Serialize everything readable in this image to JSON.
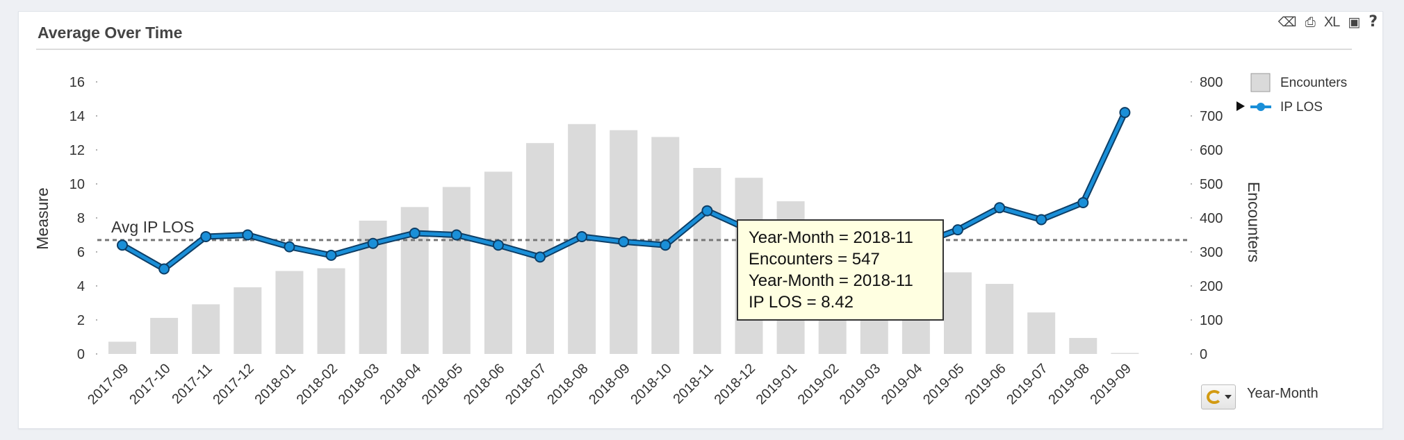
{
  "panel": {
    "title": "Average Over Time",
    "toolbar": [
      {
        "name": "eraser-icon",
        "glyph": "⌫"
      },
      {
        "name": "print-icon",
        "glyph": "⎙"
      },
      {
        "name": "excel-export-icon",
        "glyph": "XL"
      },
      {
        "name": "table-view-icon",
        "glyph": "▣"
      },
      {
        "name": "help-icon",
        "glyph": "?"
      }
    ]
  },
  "colors": {
    "bar": "#dadada",
    "line": "#1a8fd8",
    "line_outline": "#0d3e66",
    "avg_line": "#777777",
    "tooltip_bg": "#ffffe1"
  },
  "chart_data": {
    "type": "bar",
    "categories": [
      "2017-09",
      "2017-10",
      "2017-11",
      "2017-12",
      "2018-01",
      "2018-02",
      "2018-03",
      "2018-04",
      "2018-05",
      "2018-06",
      "2018-07",
      "2018-08",
      "2018-09",
      "2018-10",
      "2018-11",
      "2018-12",
      "2019-01",
      "2019-02",
      "2019-03",
      "2019-04",
      "2019-05",
      "2019-06",
      "2019-07",
      "2019-08",
      "2019-09"
    ],
    "series": [
      {
        "name": "Encounters",
        "type": "bar",
        "axis": "right",
        "values": [
          36,
          106,
          146,
          196,
          244,
          252,
          392,
          432,
          491,
          536,
          620,
          676,
          658,
          638,
          547,
          518,
          449,
          392,
          300,
          270,
          240,
          206,
          122,
          47,
          3
        ]
      },
      {
        "name": "IP LOS",
        "type": "line",
        "axis": "left",
        "values": [
          6.4,
          5.0,
          6.9,
          7.0,
          6.3,
          5.8,
          6.5,
          7.1,
          7.0,
          6.4,
          5.7,
          6.9,
          6.6,
          6.4,
          8.42,
          7.3,
          6.8,
          6.3,
          6.3,
          6.4,
          7.3,
          8.6,
          7.9,
          8.9,
          14.2
        ]
      }
    ],
    "reference_lines": [
      {
        "label": "Avg IP LOS",
        "value": 6.7,
        "axis": "left"
      }
    ],
    "ylabel": "Measure",
    "ylabel_right": "Encounters",
    "xlabel": "Year-Month",
    "ylim": [
      0,
      16
    ],
    "yticks": [
      0,
      2,
      4,
      6,
      8,
      10,
      12,
      14,
      16
    ],
    "ylim_right": [
      0,
      800
    ],
    "yticks_right": [
      0,
      100,
      200,
      300,
      400,
      500,
      600,
      700,
      800
    ],
    "legend": {
      "position": "right",
      "entries": [
        "Encounters",
        "IP LOS"
      ]
    },
    "grid": false
  },
  "tooltip": {
    "lines": [
      "Year-Month = 2018-11",
      "Encounters = 547",
      "Year-Month = 2018-11",
      "IP LOS = 8.42"
    ]
  },
  "x_axis_selector": {
    "label": "Year-Month"
  }
}
